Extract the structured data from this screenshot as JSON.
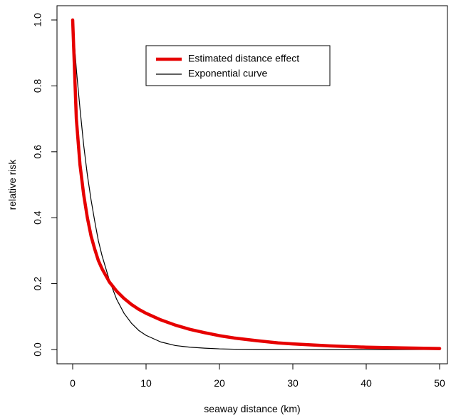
{
  "chart_data": {
    "type": "line",
    "title": "",
    "xlabel": "seaway distance (km)",
    "ylabel": "relative risk",
    "xlim": [
      0,
      50
    ],
    "ylim": [
      0,
      1
    ],
    "x_ticks": [
      0,
      10,
      20,
      30,
      40,
      50
    ],
    "y_ticks": [
      0.0,
      0.2,
      0.4,
      0.6,
      0.8,
      1.0
    ],
    "x_tick_labels": [
      "0",
      "10",
      "20",
      "30",
      "40",
      "50"
    ],
    "y_tick_labels": [
      "0.0",
      "0.2",
      "0.4",
      "0.6",
      "0.8",
      "1.0"
    ],
    "grid": false,
    "legend_position": "top-center",
    "series": [
      {
        "name": "Estimated distance effect",
        "color": "#e60000",
        "x": [
          0,
          0.5,
          1,
          1.5,
          2,
          2.5,
          3,
          3.5,
          4,
          5,
          6,
          7,
          8,
          9,
          10,
          12,
          14,
          16,
          18,
          20,
          22,
          25,
          28,
          30,
          35,
          40,
          45,
          50
        ],
        "values": [
          1.0,
          0.7,
          0.56,
          0.47,
          0.4,
          0.345,
          0.305,
          0.27,
          0.245,
          0.205,
          0.177,
          0.155,
          0.137,
          0.122,
          0.11,
          0.09,
          0.074,
          0.061,
          0.051,
          0.042,
          0.035,
          0.027,
          0.02,
          0.017,
          0.011,
          0.007,
          0.005,
          0.003
        ]
      },
      {
        "name": "Exponential curve",
        "color": "#000000",
        "x": [
          0,
          0.5,
          1,
          1.5,
          2,
          2.5,
          3,
          3.5,
          4,
          5,
          6,
          7,
          8,
          9,
          10,
          12,
          14,
          16,
          18,
          20,
          22,
          25,
          28,
          30,
          35,
          40,
          45,
          50
        ],
        "values": [
          1.0,
          0.85,
          0.73,
          0.62,
          0.53,
          0.455,
          0.39,
          0.33,
          0.285,
          0.21,
          0.152,
          0.11,
          0.08,
          0.058,
          0.043,
          0.023,
          0.012,
          0.007,
          0.004,
          0.002,
          0.001,
          0.0005,
          0.0002,
          0.0001,
          0.0,
          0.0,
          0.0,
          0.0
        ]
      }
    ]
  }
}
